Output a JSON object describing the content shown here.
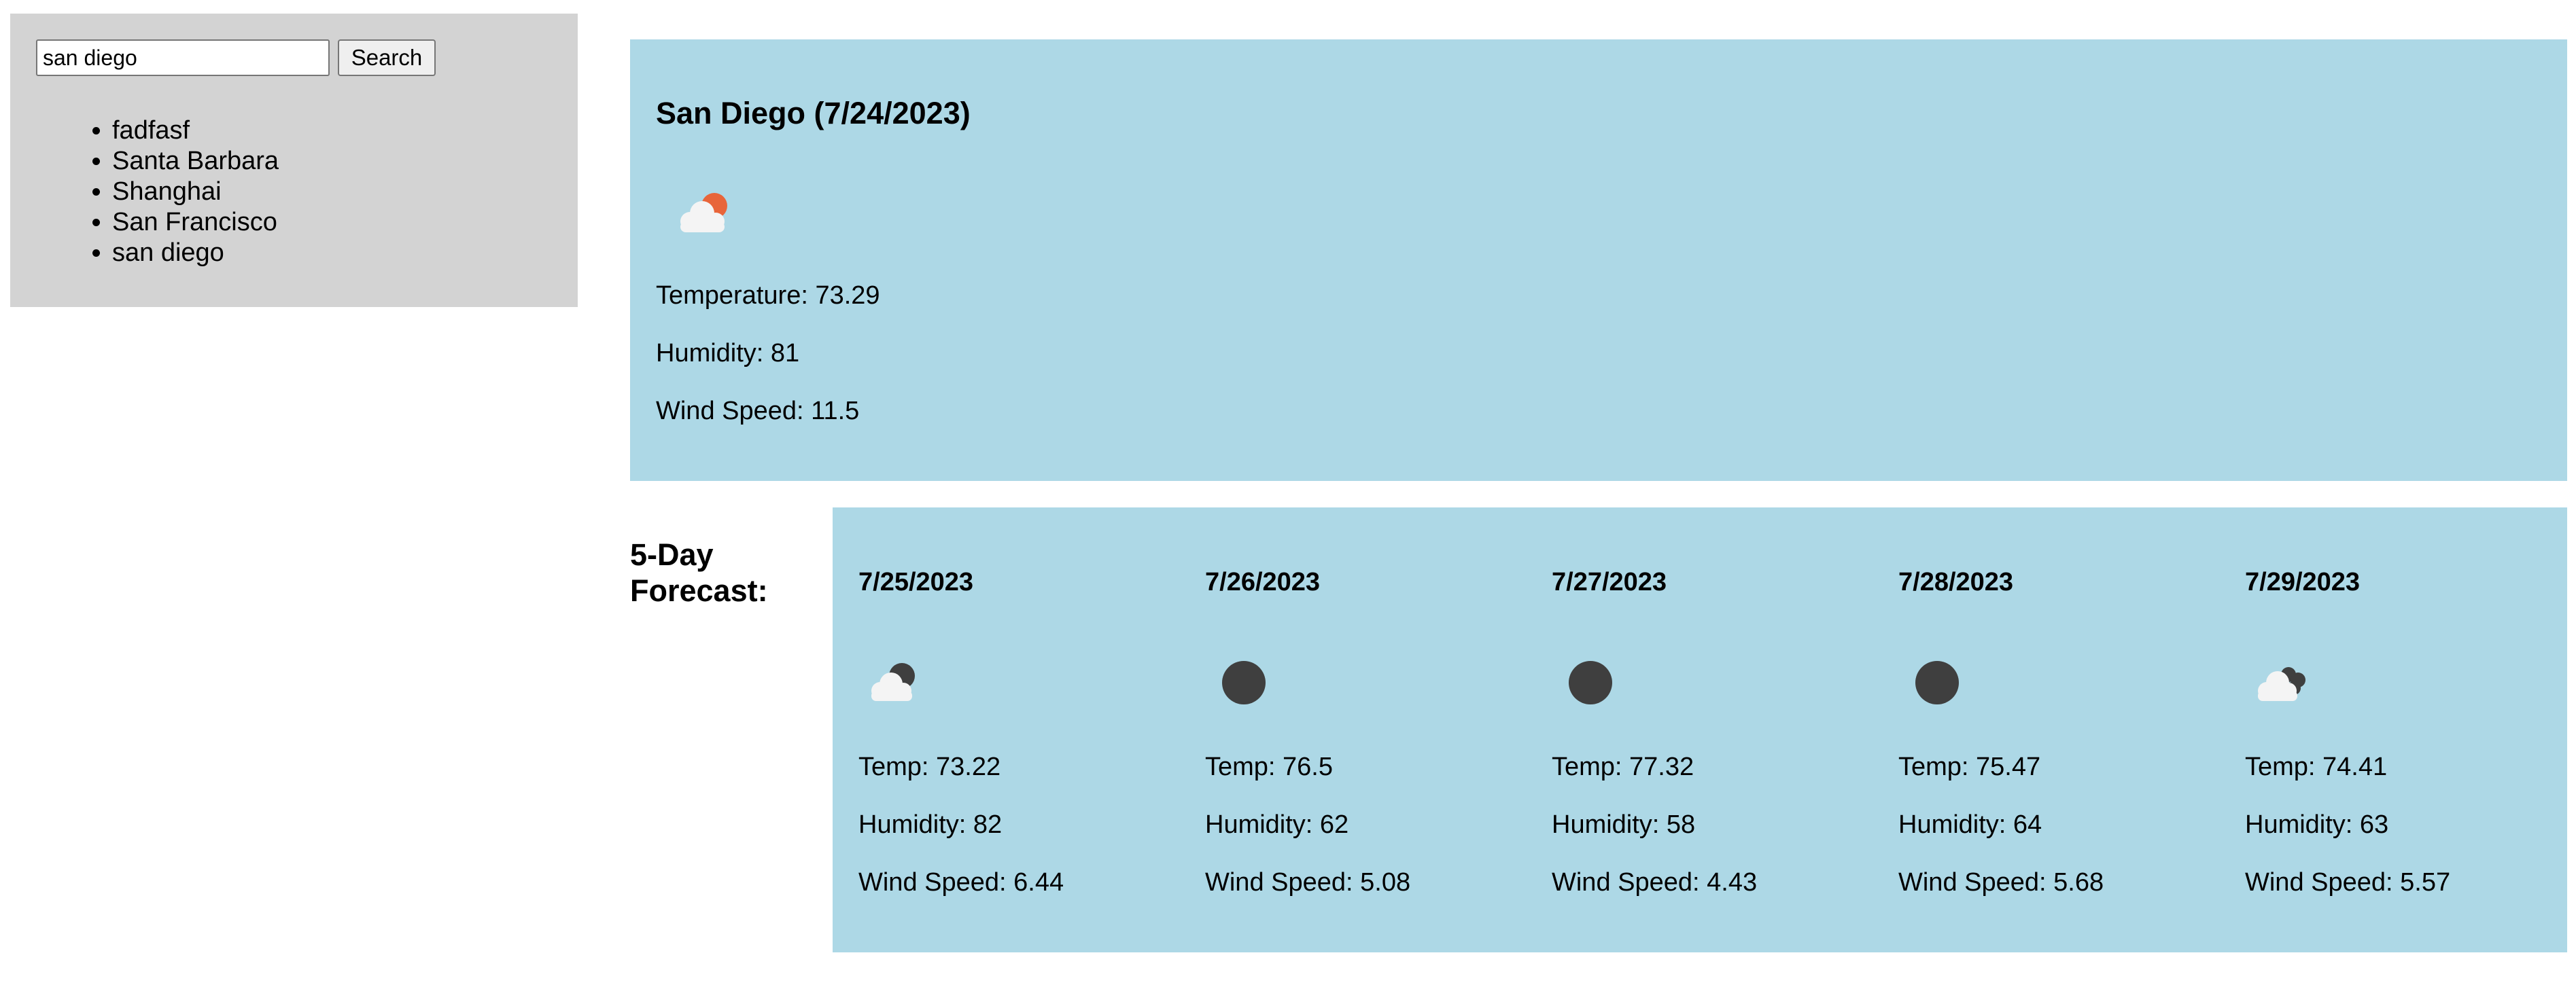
{
  "search": {
    "value": "san diego",
    "button_label": "Search"
  },
  "history": [
    "fadfasf",
    "Santa Barbara",
    "Shanghai",
    "San Francisco",
    "san diego"
  ],
  "current": {
    "title": "San Diego (7/24/2023)",
    "icon": "cloud-sun-icon",
    "temperature": "Temperature: 73.29",
    "humidity": "Humidity: 81",
    "wind": "Wind Speed: 11.5"
  },
  "forecast": {
    "heading_line1": "5-Day",
    "heading_line2": "Forecast:",
    "days": [
      {
        "date": "7/25/2023",
        "icon": "cloud-moon-icon",
        "temp": "Temp: 73.22",
        "humidity": "Humidity: 82",
        "wind": "Wind Speed: 6.44"
      },
      {
        "date": "7/26/2023",
        "icon": "moon-icon",
        "temp": "Temp: 76.5",
        "humidity": "Humidity: 62",
        "wind": "Wind Speed: 5.08"
      },
      {
        "date": "7/27/2023",
        "icon": "moon-icon",
        "temp": "Temp: 77.32",
        "humidity": "Humidity: 58",
        "wind": "Wind Speed: 4.43"
      },
      {
        "date": "7/28/2023",
        "icon": "moon-icon",
        "temp": "Temp: 75.47",
        "humidity": "Humidity: 64",
        "wind": "Wind Speed: 5.68"
      },
      {
        "date": "7/29/2023",
        "icon": "cloudy-night-icon",
        "temp": "Temp: 74.41",
        "humidity": "Humidity: 63",
        "wind": "Wind Speed: 5.57"
      }
    ]
  },
  "colors": {
    "sidebar_bg": "#d3d3d3",
    "panel_bg": "#add8e6",
    "sun": "#e8653a",
    "moon": "#3f3f3f",
    "cloud": "#f4f4f4"
  }
}
